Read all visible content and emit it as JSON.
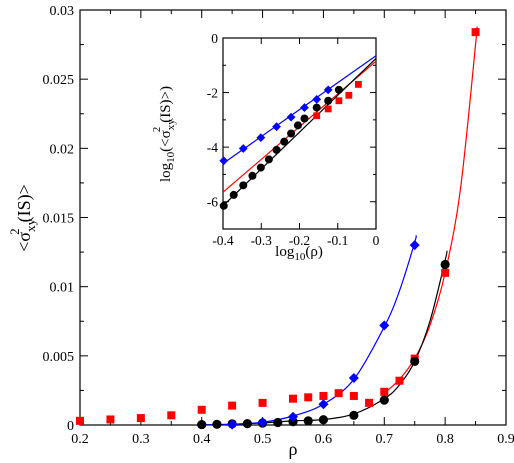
{
  "chart_data": [
    {
      "type": "scatter",
      "xlabel": "ρ",
      "ylabel": {
        "prefix": "<σ",
        "sub": "xy",
        "sup": "2",
        "suffix": "(IS)>"
      },
      "xlim": [
        0.2,
        0.9
      ],
      "ylim": [
        0,
        0.03
      ],
      "xticks": [
        "0.2",
        "0.3",
        "0.4",
        "0.5",
        "0.6",
        "0.7",
        "0.8",
        "0.9"
      ],
      "yticks": [
        "0",
        "0.005",
        "0.01",
        "0.015",
        "0.02",
        "0.025",
        "0.03"
      ],
      "series": [
        {
          "marker": "square",
          "color": "#ff0000",
          "x": [
            0.2,
            0.25,
            0.3,
            0.35,
            0.4,
            0.45,
            0.5,
            0.55,
            0.575,
            0.6,
            0.625,
            0.65,
            0.675,
            0.7,
            0.725,
            0.75,
            0.8,
            0.85
          ],
          "y": [
            0.0003,
            0.0004,
            0.0005,
            0.0007,
            0.0011,
            0.0014,
            0.0016,
            0.0019,
            0.002,
            0.0021,
            0.0023,
            0.0021,
            0.0016,
            0.0024,
            0.0032,
            0.0048,
            0.011,
            0.0284
          ],
          "fit": {
            "color": "#ff0000",
            "x_from": 0.7,
            "x_to": 0.852,
            "points": [
              [
                0.7,
                0.0023
              ],
              [
                0.725,
                0.0033
              ],
              [
                0.75,
                0.0048
              ],
              [
                0.775,
                0.0072
              ],
              [
                0.8,
                0.011
              ],
              [
                0.825,
                0.017
              ],
              [
                0.85,
                0.0275
              ],
              [
                0.852,
                0.0287
              ]
            ]
          }
        },
        {
          "marker": "circle",
          "color": "#000000",
          "x": [
            0.4,
            0.425,
            0.45,
            0.475,
            0.5,
            0.525,
            0.55,
            0.575,
            0.6,
            0.65,
            0.7,
            0.75,
            0.8
          ],
          "y": [
            3e-05,
            5e-05,
            8e-05,
            0.0001,
            0.00014,
            0.00018,
            0.00024,
            0.0003,
            0.00038,
            0.0007,
            0.0018,
            0.0046,
            0.0116
          ],
          "fit": {
            "color": "#000000",
            "points": [
              [
                0.4,
                0.0
              ],
              [
                0.45,
                6e-05
              ],
              [
                0.5,
                0.00015
              ],
              [
                0.55,
                0.0003
              ],
              [
                0.6,
                0.0004
              ],
              [
                0.65,
                0.0008
              ],
              [
                0.7,
                0.0019
              ],
              [
                0.725,
                0.0029
              ],
              [
                0.75,
                0.0046
              ],
              [
                0.775,
                0.0075
              ],
              [
                0.8,
                0.0119
              ],
              [
                0.803,
                0.0126
              ]
            ]
          }
        },
        {
          "marker": "diamond",
          "color": "#0000ff",
          "x": [
            0.45,
            0.5,
            0.55,
            0.6,
            0.65,
            0.7,
            0.75
          ],
          "y": [
            3e-05,
            0.0002,
            0.0006,
            0.0015,
            0.0034,
            0.0072,
            0.013
          ],
          "fit": {
            "color": "#0000ff",
            "points": [
              [
                0.4,
                0.0
              ],
              [
                0.45,
                5e-05
              ],
              [
                0.5,
                0.0002
              ],
              [
                0.55,
                0.00065
              ],
              [
                0.6,
                0.0015
              ],
              [
                0.65,
                0.0033
              ],
              [
                0.7,
                0.0071
              ],
              [
                0.725,
                0.0097
              ],
              [
                0.75,
                0.0132
              ],
              [
                0.752,
                0.0137
              ]
            ]
          }
        }
      ]
    },
    {
      "type": "scatter",
      "inset": true,
      "xlabel": {
        "prefix": "log",
        "sub": "10",
        "suffix": "(ρ)"
      },
      "ylabel": {
        "prefix": "log",
        "sub": "10",
        "mid": "(<σ",
        "sub2": "xy",
        "sup": "2",
        "suffix": "(IS)>)"
      },
      "xlim": [
        -0.4,
        0.0
      ],
      "ylim": [
        -7,
        0
      ],
      "xticks": [
        "-0.4",
        "-0.3",
        "-0.2",
        "-0.1",
        "0"
      ],
      "yticks": [
        "-6",
        "-4",
        "-2",
        "0"
      ],
      "series": [
        {
          "marker": "diamond",
          "color": "#0000ff",
          "x": [
            -0.398,
            -0.347,
            -0.301,
            -0.26,
            -0.222,
            -0.187,
            -0.155,
            -0.125
          ],
          "y": [
            -4.5,
            -4.05,
            -3.65,
            -3.25,
            -2.9,
            -2.55,
            -2.25,
            -1.9
          ],
          "fit": {
            "color": "#0000ff",
            "points": [
              [
                -0.4,
                -4.6
              ],
              [
                0.0,
                -0.65
              ]
            ]
          }
        },
        {
          "marker": "square",
          "color": "#ff0000",
          "x": [
            -0.155,
            -0.125,
            -0.097,
            -0.071,
            -0.046
          ],
          "y": [
            -2.85,
            -2.6,
            -2.3,
            -2.1,
            -1.7
          ],
          "fit": {
            "color": "#ff0000",
            "points": [
              [
                -0.4,
                -5.65
              ],
              [
                0.0,
                -0.85
              ]
            ]
          }
        },
        {
          "marker": "circle",
          "color": "#000000",
          "x": [
            -0.398,
            -0.372,
            -0.347,
            -0.323,
            -0.301,
            -0.28,
            -0.26,
            -0.24,
            -0.222,
            -0.204,
            -0.187,
            -0.155,
            -0.125,
            -0.097
          ],
          "y": [
            -6.15,
            -5.75,
            -5.4,
            -5.05,
            -4.75,
            -4.45,
            -4.1,
            -3.8,
            -3.5,
            -3.2,
            -2.95,
            -2.55,
            -2.3,
            -1.9
          ],
          "fit": {
            "color": "#000000",
            "points": [
              [
                -0.4,
                -6.15
              ],
              [
                0.0,
                -0.75
              ]
            ]
          }
        }
      ]
    }
  ]
}
